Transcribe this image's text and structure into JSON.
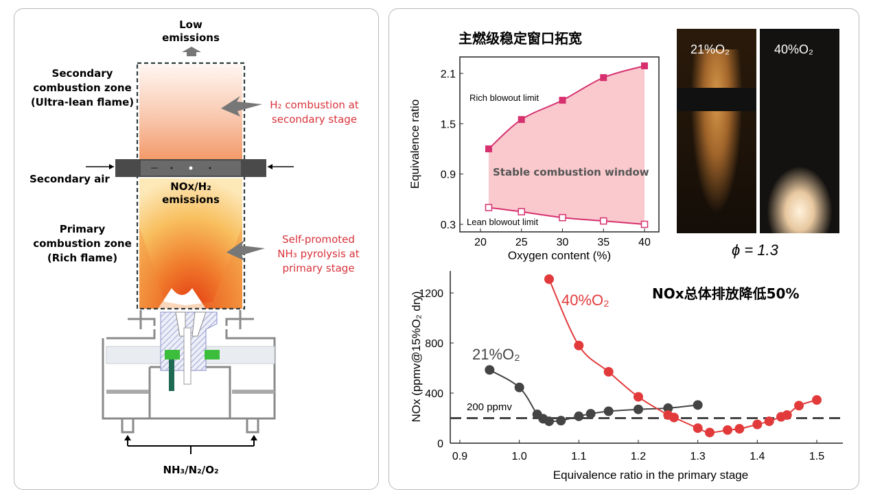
{
  "diagram": {
    "low_emissions": "Low\nemissions",
    "secondary_zone": "Secondary\ncombustion zone\n(Ultra-lean flame)",
    "secondary_air": "Secondary air",
    "nox_h2": "NOx/H₂\nemissions",
    "primary_zone": "Primary\ncombustion zone\n(Rich flame)",
    "h2_combustion": "H₂ combustion at\nsecondary stage",
    "nh3_pyrolysis": "Self-promoted\nNH₃ pyrolysis at\nprimary stage",
    "inlet": "NH₃/N₂/O₂",
    "colors": {
      "annotation": "#d8323a",
      "flame": "#e8602a"
    }
  },
  "photos": {
    "left_label": "21%O₂",
    "right_label": "40%O₂",
    "caption": "ϕ = 1.3"
  },
  "chart_data": [
    {
      "type": "area",
      "title": "主燃级稳定窗口拓宽",
      "xlabel": "Oxygen content (%)",
      "ylabel": "Equivalence ratio",
      "xlim": [
        17.5,
        41.5
      ],
      "ylim": [
        0.2,
        2.3
      ],
      "xticks": [
        "20",
        "25",
        "30",
        "35",
        "40"
      ],
      "yticks": [
        "0.3",
        "0.9",
        "1.5",
        "2.1"
      ],
      "x": [
        21,
        25,
        30,
        35,
        40
      ],
      "series": [
        {
          "name": "Rich blowout limit",
          "values": [
            1.2,
            1.55,
            1.78,
            2.05,
            2.19
          ],
          "marker": "filled-square",
          "color": "#d6306f"
        },
        {
          "name": "Lean blowout limit",
          "values": [
            0.5,
            0.45,
            0.38,
            0.34,
            0.3
          ],
          "marker": "open-square",
          "color": "#d6306f"
        }
      ],
      "fill_label": "Stable combustion window",
      "fill_color": "#f9c9cd"
    },
    {
      "type": "line",
      "title": "NOx总体排放降低50%",
      "xlabel": "Equivalence ratio in the primary stage",
      "ylabel": "NOx (ppmv@15%O₂ dry)",
      "xlim": [
        0.9,
        1.55
      ],
      "ylim": [
        0,
        1400
      ],
      "xticks": [
        "0.9",
        "1.0",
        "1.1",
        "1.2",
        "1.3",
        "1.4",
        "1.5"
      ],
      "yticks": [
        "0",
        "400",
        "800",
        "1200"
      ],
      "reference_line": {
        "value": 200,
        "label": "200 ppmv"
      },
      "series": [
        {
          "name": "21%O₂",
          "color": "#444444",
          "x": [
            0.95,
            1.0,
            1.03,
            1.04,
            1.05,
            1.07,
            1.1,
            1.12,
            1.15,
            1.2,
            1.25,
            1.3
          ],
          "values": [
            585,
            445,
            230,
            195,
            175,
            180,
            215,
            235,
            255,
            270,
            280,
            305
          ]
        },
        {
          "name": "40%O₂",
          "color": "#e23a3a",
          "x": [
            1.05,
            1.1,
            1.15,
            1.2,
            1.25,
            1.26,
            1.3,
            1.32,
            1.35,
            1.37,
            1.4,
            1.42,
            1.44,
            1.45,
            1.47,
            1.5
          ],
          "values": [
            1310,
            780,
            570,
            370,
            225,
            205,
            120,
            85,
            105,
            115,
            150,
            175,
            210,
            225,
            300,
            345
          ]
        }
      ]
    }
  ]
}
